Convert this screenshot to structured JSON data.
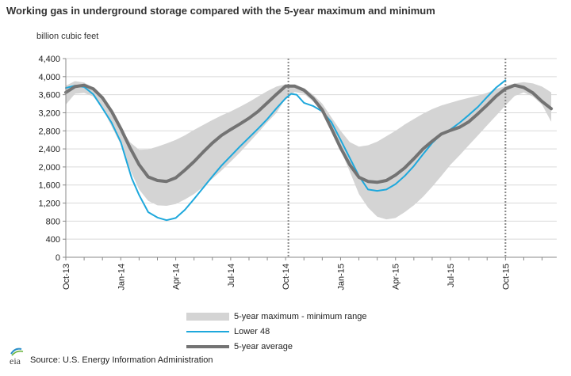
{
  "header": {
    "title": "Working gas in underground storage compared with the 5-year maximum and minimum",
    "unit_label": "billion cubic feet"
  },
  "legend": {
    "range_label": "5-year maximum - minimum range",
    "lower48_label": "Lower 48",
    "avg_label": "5-year average"
  },
  "footer": {
    "source": "Source:  U.S. Energy Information Administration",
    "logo_text": "eia"
  },
  "colors": {
    "range": "#d4d4d4",
    "lower48": "#1ea8dc",
    "average": "#737373"
  },
  "chart_data": {
    "type": "line",
    "x_unit": "months since Oct-13",
    "x_ticks": [
      {
        "x": 0,
        "label": "Oct-13"
      },
      {
        "x": 3,
        "label": "Jan-14"
      },
      {
        "x": 6,
        "label": "Apr-14"
      },
      {
        "x": 9,
        "label": "Jul-14"
      },
      {
        "x": 12,
        "label": "Oct-14"
      },
      {
        "x": 15,
        "label": "Jan-15"
      },
      {
        "x": 18,
        "label": "Apr-15"
      },
      {
        "x": 21,
        "label": "Jul-15"
      },
      {
        "x": 24,
        "label": "Oct-15"
      }
    ],
    "xlim": [
      0,
      26.8
    ],
    "ylim": [
      0,
      4400
    ],
    "y_ticks": [
      0,
      400,
      800,
      1200,
      1600,
      2000,
      2400,
      2800,
      3200,
      3600,
      4000,
      4400
    ],
    "y_tick_labels": [
      "0",
      "400",
      "800",
      "1,200",
      "1,600",
      "2,000",
      "2,400",
      "2,800",
      "3,200",
      "3,600",
      "4,000",
      "4,400"
    ],
    "vertical_markers": [
      12.15,
      24.0
    ],
    "series": [
      {
        "name": "5-year maximum - minimum range",
        "kind": "band",
        "x": [
          0,
          0.5,
          1,
          1.5,
          2,
          2.5,
          3,
          3.5,
          4,
          4.5,
          5,
          5.5,
          6,
          6.5,
          7,
          7.5,
          8,
          8.5,
          9,
          9.5,
          10,
          10.5,
          11,
          11.5,
          12,
          12.5,
          13,
          13.5,
          14,
          14.5,
          15,
          15.5,
          16,
          16.5,
          17,
          17.5,
          18,
          18.5,
          19,
          19.5,
          20,
          20.5,
          21,
          21.5,
          22,
          22.5,
          23,
          23.5,
          24,
          24.5,
          25,
          25.5,
          26,
          26.5
        ],
        "upper": [
          3800,
          3900,
          3870,
          3750,
          3550,
          3200,
          2850,
          2550,
          2380,
          2390,
          2450,
          2520,
          2600,
          2700,
          2820,
          2930,
          3040,
          3140,
          3230,
          3330,
          3440,
          3560,
          3680,
          3780,
          3830,
          3810,
          3750,
          3600,
          3400,
          3100,
          2800,
          2550,
          2450,
          2480,
          2560,
          2680,
          2800,
          2940,
          3060,
          3180,
          3280,
          3360,
          3420,
          3480,
          3530,
          3580,
          3640,
          3730,
          3790,
          3850,
          3880,
          3850,
          3780,
          3650
        ],
        "lower": [
          3380,
          3620,
          3640,
          3560,
          3300,
          2900,
          2500,
          1950,
          1500,
          1250,
          1150,
          1140,
          1180,
          1280,
          1400,
          1560,
          1740,
          1920,
          2120,
          2320,
          2540,
          2760,
          2990,
          3200,
          3520,
          3660,
          3620,
          3450,
          3200,
          2840,
          2380,
          1900,
          1400,
          1100,
          900,
          840,
          870,
          1000,
          1150,
          1340,
          1560,
          1800,
          2050,
          2260,
          2480,
          2700,
          2920,
          3140,
          3360,
          3570,
          3650,
          3560,
          3380,
          3000
        ]
      },
      {
        "name": "Lower 48",
        "kind": "line",
        "x": [
          0,
          0.5,
          1,
          1.5,
          2,
          2.5,
          3,
          3.3,
          3.6,
          4,
          4.5,
          5,
          5.5,
          6,
          6.5,
          7,
          7.5,
          8,
          8.5,
          9,
          9.5,
          10,
          10.5,
          11,
          11.5,
          12,
          12.3,
          12.6,
          13,
          13.5,
          14,
          14.5,
          15,
          15.5,
          16,
          16.5,
          17,
          17.5,
          18,
          18.5,
          19,
          19.5,
          20,
          20.5,
          21,
          21.5,
          22,
          22.5,
          23,
          23.5,
          24
        ],
        "y": [
          3750,
          3800,
          3770,
          3610,
          3300,
          2980,
          2550,
          2150,
          1750,
          1380,
          1000,
          880,
          820,
          870,
          1050,
          1290,
          1540,
          1790,
          2030,
          2240,
          2450,
          2650,
          2850,
          3060,
          3300,
          3520,
          3620,
          3600,
          3420,
          3350,
          3230,
          2990,
          2600,
          2200,
          1800,
          1500,
          1470,
          1500,
          1620,
          1800,
          2020,
          2280,
          2530,
          2720,
          2830,
          2980,
          3150,
          3330,
          3550,
          3760,
          3920
        ]
      },
      {
        "name": "5-year average",
        "kind": "line",
        "x": [
          0,
          0.5,
          1,
          1.5,
          2,
          2.5,
          3,
          3.5,
          4,
          4.5,
          5,
          5.5,
          6,
          6.5,
          7,
          7.5,
          8,
          8.5,
          9,
          9.5,
          10,
          10.5,
          11,
          11.5,
          12,
          12.5,
          13,
          13.5,
          14,
          14.5,
          15,
          15.5,
          16,
          16.5,
          17,
          17.5,
          18,
          18.5,
          19,
          19.5,
          20,
          20.5,
          21,
          21.5,
          22,
          22.5,
          23,
          23.5,
          24,
          24.5,
          25,
          25.5,
          26,
          26.5
        ],
        "y": [
          3650,
          3780,
          3810,
          3730,
          3530,
          3230,
          2850,
          2430,
          2050,
          1780,
          1700,
          1680,
          1760,
          1930,
          2120,
          2330,
          2530,
          2700,
          2830,
          2950,
          3080,
          3230,
          3420,
          3610,
          3790,
          3790,
          3700,
          3520,
          3260,
          2850,
          2420,
          2050,
          1770,
          1680,
          1660,
          1700,
          1820,
          1980,
          2180,
          2400,
          2570,
          2730,
          2810,
          2880,
          3000,
          3180,
          3370,
          3570,
          3730,
          3810,
          3760,
          3640,
          3450,
          3290
        ]
      }
    ]
  }
}
